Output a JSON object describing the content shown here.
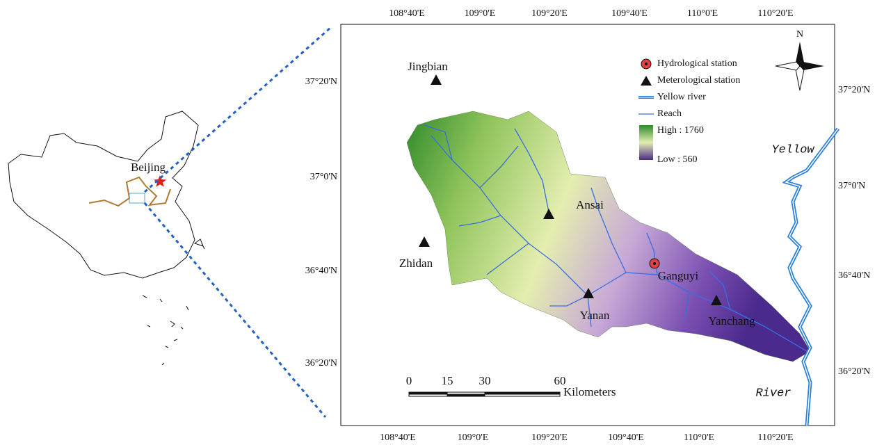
{
  "map": {
    "lon_labels_top": [
      "108°40'E",
      "109°0'E",
      "109°20'E",
      "109°40'E",
      "110°0'E",
      "110°20'E"
    ],
    "lon_labels_bottom": [
      "108°40'E",
      "109°0'E",
      "109°20'E",
      "109°40'E",
      "110°0'E",
      "110°20'E"
    ],
    "lat_labels_left": [
      "37°20'N",
      "37°0'N",
      "36°40'N",
      "36°20'N"
    ],
    "lat_labels_right": [
      "37°20'N",
      "37°0'N",
      "36°40'N",
      "36°20'N"
    ],
    "stations": [
      {
        "name": "Jingbian",
        "kind": "meteorological"
      },
      {
        "name": "Ansai",
        "kind": "meteorological"
      },
      {
        "name": "Zhidan",
        "kind": "meteorological"
      },
      {
        "name": "Yanan",
        "kind": "meteorological"
      },
      {
        "name": "Ganguyi",
        "kind": "hydrological"
      },
      {
        "name": "Yanchang",
        "kind": "meteorological"
      }
    ],
    "legend": [
      "Hydrological station",
      "Meterological station",
      "Yellow river",
      "Reach",
      "High : 1760",
      "Low : 560"
    ],
    "north": "N",
    "river_labels": [
      "Yellow",
      "River"
    ],
    "inset_label": "Beijing",
    "scale_bar": {
      "ticks": [
        0,
        15,
        30,
        60
      ],
      "unit": "Kilometers"
    }
  }
}
